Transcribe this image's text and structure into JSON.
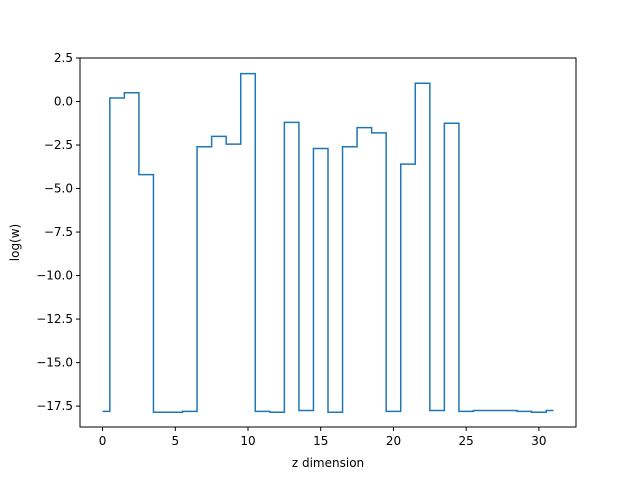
{
  "chart_data": {
    "type": "line",
    "drawstyle": "steps-mid",
    "xlabel": "z dimension",
    "ylabel": "log(w)",
    "xlim": [
      -1.55,
      32.55
    ],
    "ylim": [
      -18.7,
      2.5
    ],
    "xticks": [
      0,
      5,
      10,
      15,
      20,
      25,
      30
    ],
    "yticks": [
      2.5,
      0.0,
      -2.5,
      -5.0,
      -7.5,
      -10.0,
      -12.5,
      -15.0,
      -17.5
    ],
    "xtick_labels": [
      "0",
      "5",
      "10",
      "15",
      "20",
      "25",
      "30"
    ],
    "ytick_labels": [
      "2.5",
      "0.0",
      "−2.5",
      "−5.0",
      "−7.5",
      "−10.0",
      "−12.5",
      "−15.0",
      "−17.5"
    ],
    "grid": false,
    "series": [
      {
        "color": "#1f77b4",
        "x": [
          0,
          1,
          2,
          3,
          4,
          5,
          6,
          7,
          8,
          9,
          10,
          11,
          12,
          13,
          14,
          15,
          16,
          17,
          18,
          19,
          20,
          21,
          22,
          23,
          24,
          25,
          26,
          27,
          28,
          29,
          30,
          31
        ],
        "y": [
          -17.8,
          0.2,
          0.5,
          -4.2,
          -17.85,
          -17.85,
          -17.8,
          -2.6,
          -2.0,
          -2.45,
          1.6,
          -17.8,
          -17.85,
          -1.2,
          -17.75,
          -2.7,
          -17.85,
          -2.6,
          -1.5,
          -1.8,
          -17.8,
          -3.6,
          1.05,
          -17.75,
          -1.25,
          -17.8,
          -17.75,
          -17.75,
          -17.75,
          -17.8,
          -17.85,
          -17.75
        ]
      }
    ]
  }
}
